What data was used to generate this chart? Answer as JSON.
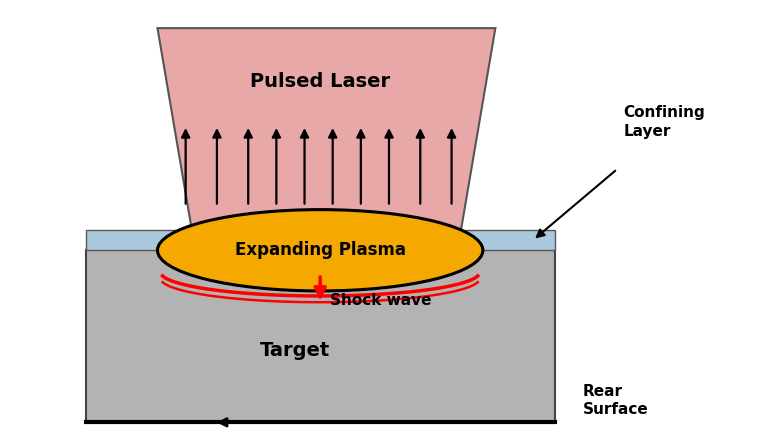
{
  "bg_color": "#ffffff",
  "target_color": "#b3b3b3",
  "confining_layer_color": "#aac8dc",
  "laser_color": "#e8a8a8",
  "plasma_color": "#f5a800",
  "plasma_edge_color": "#000000",
  "shock_wave_color": "#ff0000",
  "arrow_color": "#000000",
  "text_pulsed_laser": "Pulsed Laser",
  "text_confining_layer": "Confining\nLayer",
  "text_expanding_plasma": "Expanding Plasma",
  "text_shock_wave": "Shock wave",
  "text_target": "Target",
  "text_rear_surface": "Rear\nSurface",
  "figsize": [
    7.78,
    4.38
  ],
  "dpi": 100,
  "xlim": [
    0,
    10
  ],
  "ylim": [
    0,
    7
  ]
}
